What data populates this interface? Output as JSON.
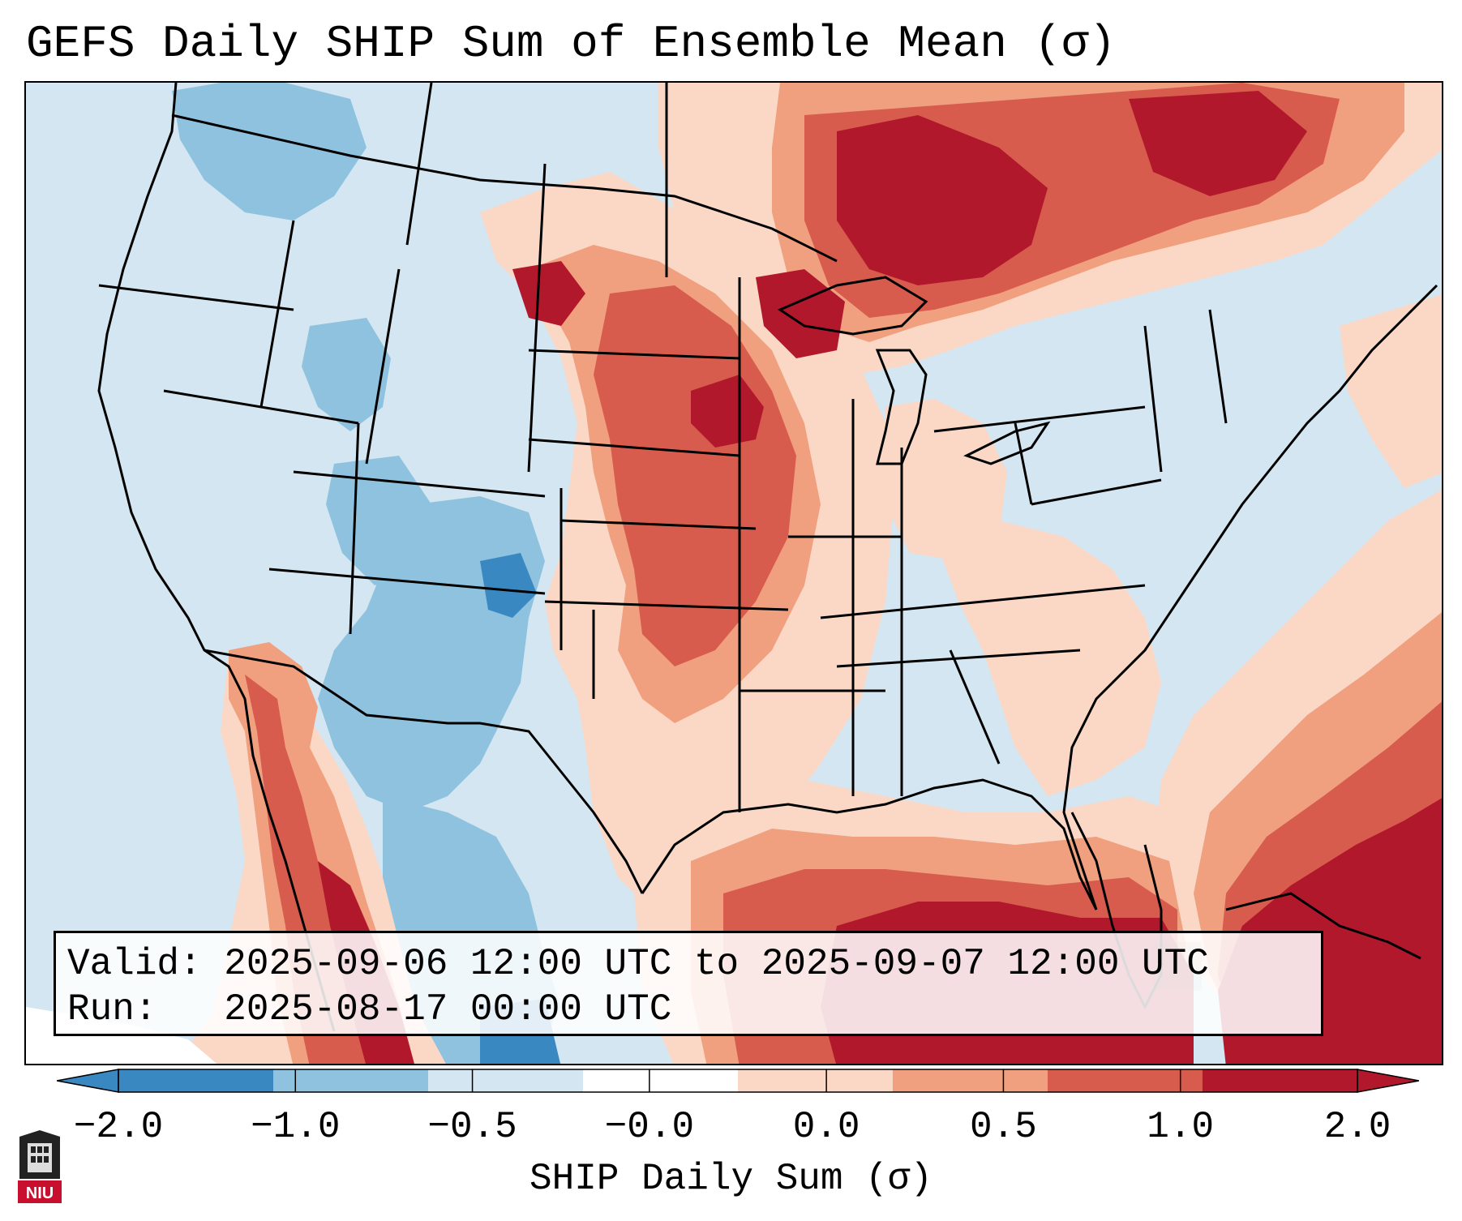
{
  "title": "GEFS Daily SHIP Sum of Ensemble Mean (σ)",
  "valid": {
    "label": "Valid:",
    "value": "2025-09-06 12:00 UTC to 2025-09-07 12:00 UTC"
  },
  "run": {
    "label": "Run:",
    "value": "2025-08-17 00:00 UTC"
  },
  "colorbar": {
    "label": "SHIP Daily Sum (σ)",
    "ticks": [
      "−2.0",
      "−1.0",
      "−0.5",
      "−0.0",
      "0.0",
      "0.5",
      "1.0",
      "2.0"
    ],
    "colors": [
      "#3a88c2",
      "#8fc2de",
      "#d3e6f1",
      "#ffffff",
      "#fbd8c6",
      "#f0a07f",
      "#d75c4d",
      "#b2182b"
    ],
    "extend": "both"
  },
  "logo": {
    "text": "NIU",
    "color": "#c8102e"
  }
}
